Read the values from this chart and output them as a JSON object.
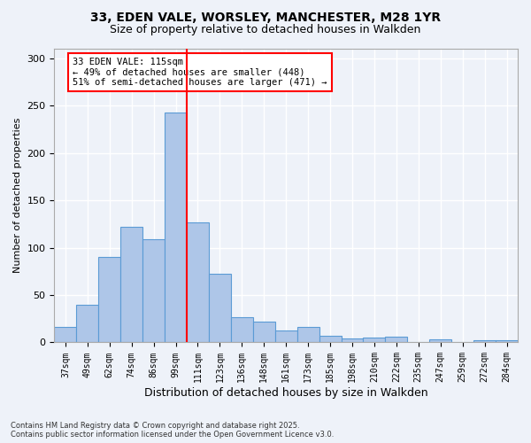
{
  "title_line1": "33, EDEN VALE, WORSLEY, MANCHESTER, M28 1YR",
  "title_line2": "Size of property relative to detached houses in Walkden",
  "xlabel": "Distribution of detached houses by size in Walkden",
  "ylabel": "Number of detached properties",
  "footnote": "Contains HM Land Registry data © Crown copyright and database right 2025.\nContains public sector information licensed under the Open Government Licence v3.0.",
  "categories": [
    "37sqm",
    "49sqm",
    "62sqm",
    "74sqm",
    "86sqm",
    "99sqm",
    "111sqm",
    "123sqm",
    "136sqm",
    "148sqm",
    "161sqm",
    "173sqm",
    "185sqm",
    "198sqm",
    "210sqm",
    "222sqm",
    "235sqm",
    "247sqm",
    "259sqm",
    "272sqm",
    "284sqm"
  ],
  "values": [
    16,
    40,
    90,
    122,
    109,
    243,
    127,
    72,
    27,
    22,
    13,
    16,
    7,
    4,
    5,
    6,
    0,
    3,
    0,
    2,
    2
  ],
  "bar_color": "#aec6e8",
  "bar_edge_color": "#5b9bd5",
  "background_color": "#eef2f9",
  "grid_color": "#ffffff",
  "vline_x": 5.5,
  "vline_color": "red",
  "annotation_title": "33 EDEN VALE: 115sqm",
  "annotation_line2": "← 49% of detached houses are smaller (448)",
  "annotation_line3": "51% of semi-detached houses are larger (471) →",
  "ylim": [
    0,
    310
  ],
  "yticks": [
    0,
    50,
    100,
    150,
    200,
    250,
    300
  ]
}
